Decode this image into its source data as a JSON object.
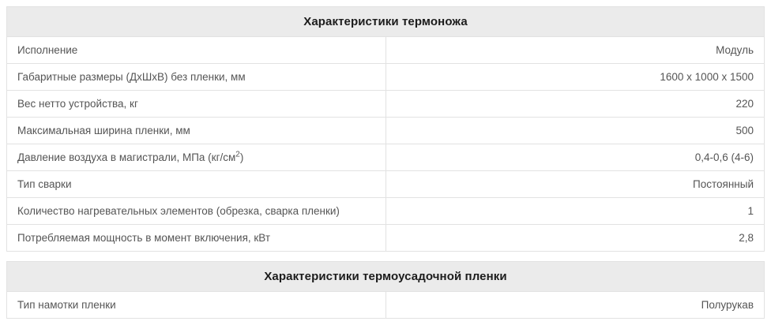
{
  "colors": {
    "page_bg": "#ffffff",
    "header_bg": "#ebebeb",
    "border": "#e2e2e2",
    "title_text": "#1c1c1c",
    "cell_text": "#555555"
  },
  "tables": [
    {
      "title": "Характеристики термоножа",
      "rows": [
        {
          "label": "Исполнение",
          "value": "Модуль"
        },
        {
          "label": "Габаритные размеры (ДхШхВ) без пленки, мм",
          "value": "1600 x 1000 x 1500"
        },
        {
          "label": "Вес нетто устройства, кг",
          "value": "220"
        },
        {
          "label": "Максимальная ширина пленки, мм",
          "value": "500"
        },
        {
          "label": "Давление воздуха в магистрали, МПа (кг/см²)",
          "value": "0,4-0,6 (4-6)"
        },
        {
          "label": "Тип сварки",
          "value": "Постоянный"
        },
        {
          "label": "Количество нагревательных элементов (обрезка, сварка пленки)",
          "value": "1"
        },
        {
          "label": "Потребляемая мощность в момент включения, кВт",
          "value": "2,8"
        }
      ]
    },
    {
      "title": "Характеристики термоусадочной пленки",
      "rows": [
        {
          "label": "Тип намотки пленки",
          "value": "Полурукав"
        }
      ]
    }
  ]
}
